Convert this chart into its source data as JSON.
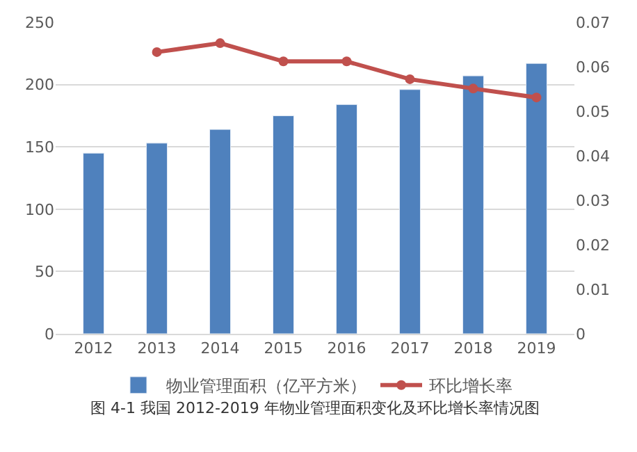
{
  "chart_data": {
    "type": "bar",
    "categories": [
      "2012",
      "2013",
      "2014",
      "2015",
      "2016",
      "2017",
      "2018",
      "2019"
    ],
    "series": [
      {
        "name": "物业管理面积（亿平方米）",
        "color": "#4f81bd",
        "values": [
          145,
          153,
          164,
          175,
          184,
          196,
          207,
          217
        ]
      },
      {
        "name": "环比增长率",
        "type": "line",
        "axis": "y2",
        "color": "#c0504d",
        "values": [
          null,
          0.0633,
          0.0653,
          0.0612,
          0.0612,
          0.0572,
          0.0551,
          0.0531
        ]
      }
    ],
    "ylim": [
      0,
      250
    ],
    "yticks": [
      0,
      50,
      100,
      150,
      200,
      250
    ],
    "y2lim": [
      0,
      0.07
    ],
    "y2ticks": [
      0,
      0.01,
      0.02,
      0.03,
      0.04,
      0.05,
      0.06,
      0.07
    ],
    "grid": "y",
    "legend": "bottom",
    "marker": "circle",
    "line_style": "solid",
    "annotations": [
      "图 4-1 我国 2012-2019 年物业管理面积变化及环比增长率情况图"
    ]
  }
}
